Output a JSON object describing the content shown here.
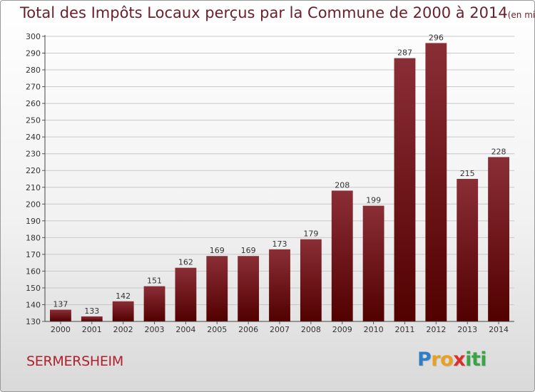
{
  "title": "Total des Impôts Locaux perçus par la Commune de 2000 à 2014",
  "unit_note": "(en milliers d'€)",
  "commune": "SERMERSHEIM",
  "logo": {
    "letters": [
      "P",
      "r",
      "o",
      "x",
      "i",
      "t",
      "i"
    ],
    "colors": [
      "#2f7fc8",
      "#e8a020",
      "#e8a020",
      "#d8302a",
      "#3aa347",
      "#3aa347",
      "#3aa347"
    ]
  },
  "colors": {
    "bar_top": "#8a2e36",
    "bar_bottom": "#520000",
    "title": "#6b1f2a",
    "commune": "#b0202e"
  },
  "chart_data": {
    "type": "bar",
    "title": "Total des Impôts Locaux perçus par la Commune de 2000 à 2014",
    "xlabel": "",
    "ylabel": "",
    "categories": [
      "2000",
      "2001",
      "2002",
      "2003",
      "2004",
      "2005",
      "2006",
      "2007",
      "2008",
      "2009",
      "2010",
      "2011",
      "2012",
      "2013",
      "2014"
    ],
    "values": [
      137,
      133,
      142,
      151,
      162,
      169,
      169,
      173,
      179,
      208,
      199,
      287,
      296,
      215,
      228
    ],
    "ylim": [
      130,
      300
    ],
    "yticks": [
      130,
      140,
      150,
      160,
      170,
      180,
      190,
      200,
      210,
      220,
      230,
      240,
      250,
      260,
      270,
      280,
      290,
      300
    ],
    "grid": true
  }
}
